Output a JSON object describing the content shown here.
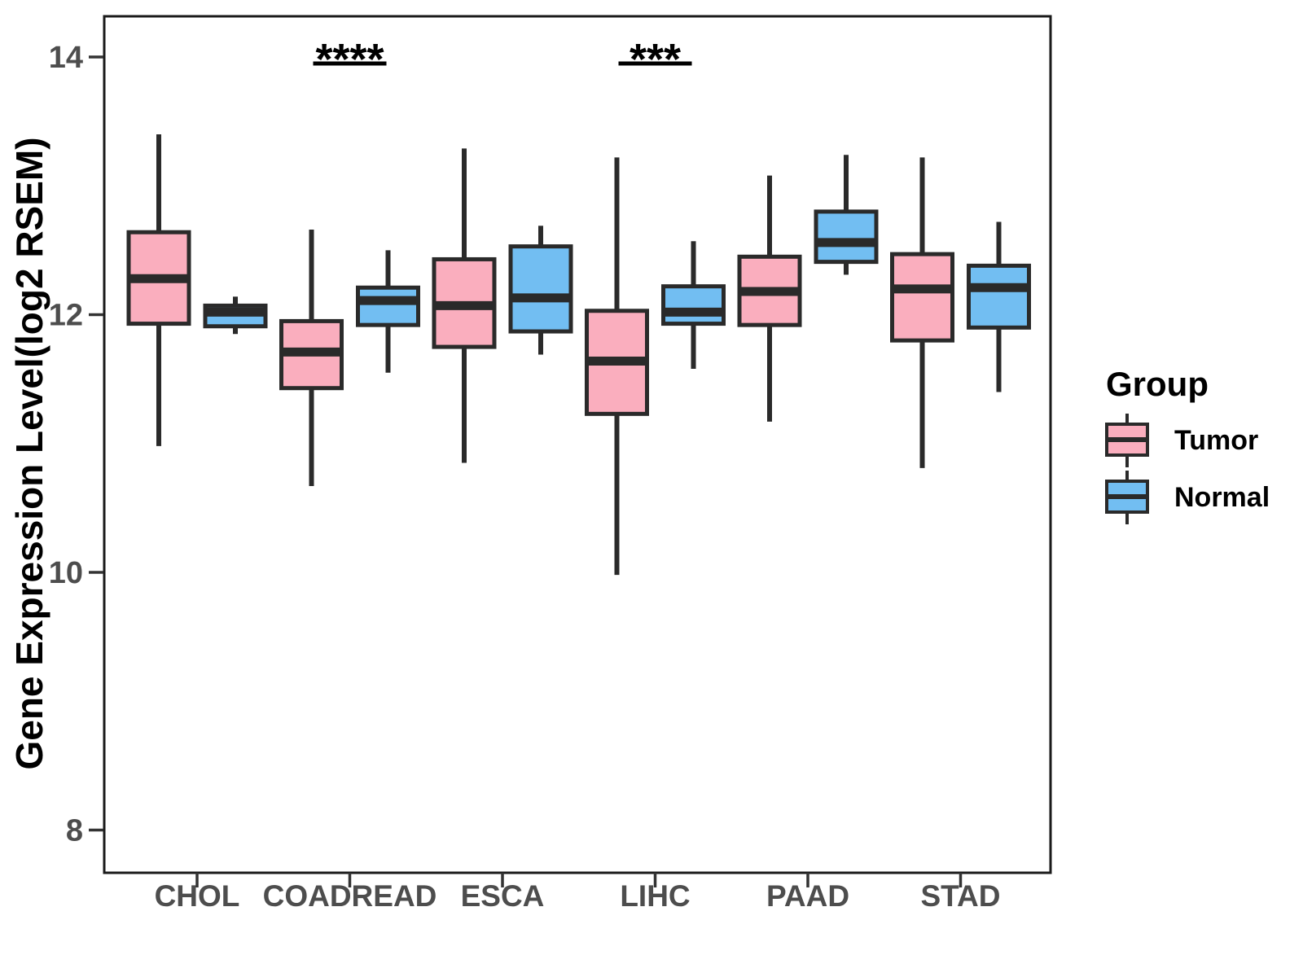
{
  "chart_data": {
    "type": "boxplot",
    "title": "",
    "xlabel": "",
    "ylabel": "Gene Expression Level(log2 RSEM)",
    "ylim": [
      7.67,
      14.33
    ],
    "yticks": [
      8,
      10,
      12,
      14
    ],
    "grid": false,
    "categories": [
      "CHOL",
      "COADREAD",
      "ESCA",
      "LIHC",
      "PAAD",
      "STAD"
    ],
    "legend": {
      "title": "Group",
      "position": "right",
      "entries": [
        {
          "label": "Tumor",
          "color": "#FAAEBE"
        },
        {
          "label": "Normal",
          "color": "#72BEF2"
        }
      ]
    },
    "series": [
      {
        "name": "Tumor",
        "color": "#FAAEBE",
        "boxes": [
          {
            "low": 10.98,
            "q1": 11.93,
            "median": 12.28,
            "q3": 12.64,
            "high": 13.4
          },
          {
            "low": 10.67,
            "q1": 11.43,
            "median": 11.71,
            "q3": 11.95,
            "high": 12.66
          },
          {
            "low": 10.85,
            "q1": 11.75,
            "median": 12.07,
            "q3": 12.43,
            "high": 13.29
          },
          {
            "low": 9.98,
            "q1": 11.23,
            "median": 11.64,
            "q3": 12.03,
            "high": 13.22
          },
          {
            "low": 11.17,
            "q1": 11.92,
            "median": 12.18,
            "q3": 12.45,
            "high": 13.08
          },
          {
            "low": 10.81,
            "q1": 11.8,
            "median": 12.2,
            "q3": 12.47,
            "high": 13.22
          }
        ]
      },
      {
        "name": "Normal",
        "color": "#72BEF2",
        "boxes": [
          {
            "low": 11.85,
            "q1": 11.91,
            "median": 12.02,
            "q3": 12.07,
            "high": 12.14
          },
          {
            "low": 11.55,
            "q1": 11.92,
            "median": 12.11,
            "q3": 12.21,
            "high": 12.5
          },
          {
            "low": 11.69,
            "q1": 11.87,
            "median": 12.13,
            "q3": 12.53,
            "high": 12.69
          },
          {
            "low": 11.58,
            "q1": 11.93,
            "median": 12.02,
            "q3": 12.22,
            "high": 12.57
          },
          {
            "low": 12.31,
            "q1": 12.41,
            "median": 12.56,
            "q3": 12.8,
            "high": 13.24
          },
          {
            "low": 11.4,
            "q1": 11.9,
            "median": 12.21,
            "q3": 12.38,
            "high": 12.72
          }
        ]
      }
    ],
    "annotations": [
      {
        "category": "COADREAD",
        "label": "****"
      },
      {
        "category": "LIHC",
        "label": "***"
      }
    ],
    "colors": {
      "box_border": "#2a2a2a",
      "panel_border": "#1a1a1a",
      "axis_text": "#4d4d4d",
      "tick_mark": "#333333",
      "annotation": "#000000"
    }
  }
}
